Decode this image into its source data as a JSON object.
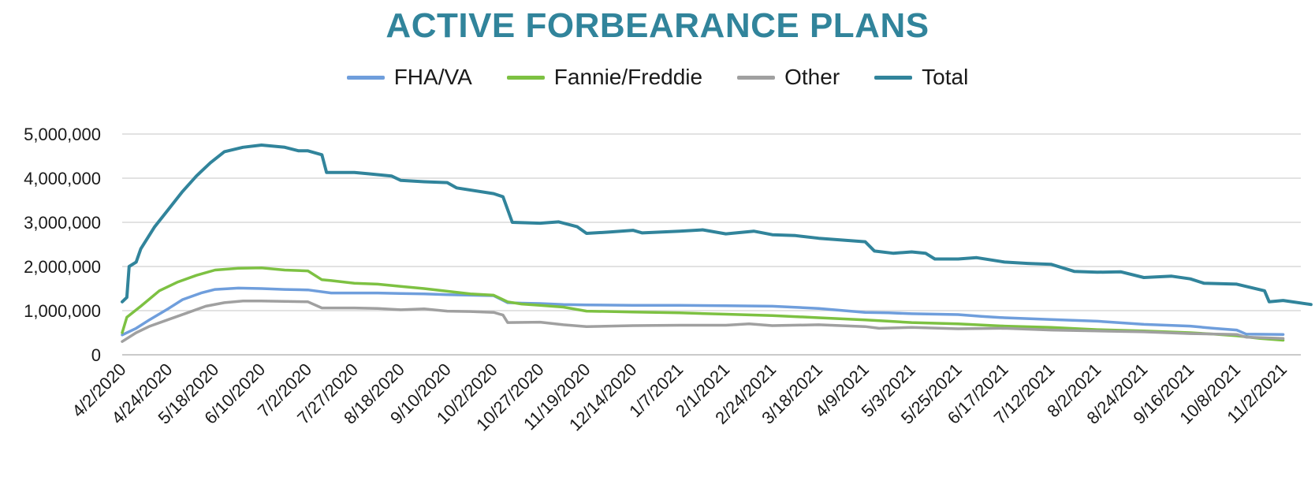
{
  "chart_data": {
    "type": "line",
    "title": "ACTIVE FORBEARANCE PLANS",
    "xlabel": "",
    "ylabel": "",
    "ylim": [
      0,
      5000000
    ],
    "yticks": [
      {
        "value": 0,
        "label": "0"
      },
      {
        "value": 1000000,
        "label": "1,000,000"
      },
      {
        "value": 2000000,
        "label": "2,000,000"
      },
      {
        "value": 3000000,
        "label": "3,000,000"
      },
      {
        "value": 4000000,
        "label": "4,000,000"
      },
      {
        "value": 5000000,
        "label": "5,000,000"
      }
    ],
    "xticks": [
      "4/2/2020",
      "4/24/2020",
      "5/18/2020",
      "6/10/2020",
      "7/2/2020",
      "7/27/2020",
      "8/18/2020",
      "9/10/2020",
      "10/2/2020",
      "10/27/2020",
      "11/19/2020",
      "12/14/2020",
      "1/7/2021",
      "2/1/2021",
      "2/24/2021",
      "3/18/2021",
      "4/9/2021",
      "5/3/2021",
      "5/25/2021",
      "6/17/2021",
      "7/12/2021",
      "8/2/2021",
      "8/24/2021",
      "9/16/2021",
      "10/8/2021",
      "11/2/2021"
    ],
    "grid": true,
    "legend_position": "top",
    "series": [
      {
        "name": "FHA/VA",
        "color": "#6f9edc",
        "points": [
          [
            0,
            450000
          ],
          [
            0.3,
            600000
          ],
          [
            0.6,
            800000
          ],
          [
            1,
            1050000
          ],
          [
            1.3,
            1250000
          ],
          [
            1.7,
            1400000
          ],
          [
            2,
            1480000
          ],
          [
            2.5,
            1510000
          ],
          [
            3,
            1500000
          ],
          [
            3.5,
            1480000
          ],
          [
            4,
            1470000
          ],
          [
            4.5,
            1400000
          ],
          [
            5,
            1400000
          ],
          [
            5.5,
            1400000
          ],
          [
            6,
            1390000
          ],
          [
            6.5,
            1380000
          ],
          [
            7,
            1360000
          ],
          [
            7.5,
            1350000
          ],
          [
            8,
            1340000
          ],
          [
            8.3,
            1180000
          ],
          [
            8.6,
            1170000
          ],
          [
            9,
            1160000
          ],
          [
            9.5,
            1140000
          ],
          [
            10,
            1130000
          ],
          [
            11,
            1120000
          ],
          [
            12,
            1120000
          ],
          [
            13,
            1110000
          ],
          [
            14,
            1100000
          ],
          [
            15,
            1050000
          ],
          [
            16,
            960000
          ],
          [
            16.5,
            950000
          ],
          [
            17,
            930000
          ],
          [
            18,
            910000
          ],
          [
            18.5,
            870000
          ],
          [
            19,
            840000
          ],
          [
            20,
            800000
          ],
          [
            21,
            760000
          ],
          [
            22,
            690000
          ],
          [
            23,
            650000
          ],
          [
            23.5,
            600000
          ],
          [
            24,
            560000
          ],
          [
            24.2,
            470000
          ],
          [
            25,
            460000
          ]
        ]
      },
      {
        "name": "Fannie/Freddie",
        "color": "#7dc142",
        "points": [
          [
            0,
            500000
          ],
          [
            0.1,
            850000
          ],
          [
            0.4,
            1100000
          ],
          [
            0.8,
            1450000
          ],
          [
            1.2,
            1650000
          ],
          [
            1.6,
            1800000
          ],
          [
            2,
            1920000
          ],
          [
            2.5,
            1960000
          ],
          [
            3,
            1970000
          ],
          [
            3.5,
            1920000
          ],
          [
            4,
            1900000
          ],
          [
            4.3,
            1700000
          ],
          [
            4.5,
            1680000
          ],
          [
            5,
            1620000
          ],
          [
            5.5,
            1600000
          ],
          [
            6,
            1550000
          ],
          [
            6.5,
            1500000
          ],
          [
            7,
            1440000
          ],
          [
            7.5,
            1380000
          ],
          [
            8,
            1350000
          ],
          [
            8.3,
            1200000
          ],
          [
            8.6,
            1150000
          ],
          [
            9,
            1120000
          ],
          [
            9.5,
            1080000
          ],
          [
            10,
            990000
          ],
          [
            11,
            970000
          ],
          [
            12,
            950000
          ],
          [
            13,
            920000
          ],
          [
            14,
            890000
          ],
          [
            15,
            840000
          ],
          [
            16,
            790000
          ],
          [
            16.5,
            760000
          ],
          [
            17,
            730000
          ],
          [
            18,
            700000
          ],
          [
            19,
            650000
          ],
          [
            20,
            620000
          ],
          [
            21,
            570000
          ],
          [
            22,
            540000
          ],
          [
            23,
            500000
          ],
          [
            23.5,
            470000
          ],
          [
            24,
            430000
          ],
          [
            24.5,
            370000
          ],
          [
            25,
            330000
          ]
        ]
      },
      {
        "name": "Other",
        "color": "#a0a0a0",
        "points": [
          [
            0,
            300000
          ],
          [
            0.3,
            500000
          ],
          [
            0.6,
            650000
          ],
          [
            1,
            800000
          ],
          [
            1.4,
            950000
          ],
          [
            1.8,
            1100000
          ],
          [
            2.2,
            1180000
          ],
          [
            2.6,
            1220000
          ],
          [
            3,
            1220000
          ],
          [
            3.5,
            1210000
          ],
          [
            4,
            1200000
          ],
          [
            4.3,
            1060000
          ],
          [
            5,
            1060000
          ],
          [
            5.5,
            1050000
          ],
          [
            6,
            1020000
          ],
          [
            6.5,
            1040000
          ],
          [
            7,
            990000
          ],
          [
            7.5,
            980000
          ],
          [
            8,
            960000
          ],
          [
            8.2,
            900000
          ],
          [
            8.3,
            730000
          ],
          [
            9,
            740000
          ],
          [
            9.5,
            680000
          ],
          [
            10,
            640000
          ],
          [
            11,
            660000
          ],
          [
            12,
            670000
          ],
          [
            13,
            670000
          ],
          [
            13.5,
            700000
          ],
          [
            14,
            660000
          ],
          [
            15,
            680000
          ],
          [
            16,
            640000
          ],
          [
            16.3,
            600000
          ],
          [
            17,
            620000
          ],
          [
            18,
            590000
          ],
          [
            19,
            600000
          ],
          [
            20,
            560000
          ],
          [
            21,
            540000
          ],
          [
            22,
            520000
          ],
          [
            23,
            480000
          ],
          [
            24,
            460000
          ],
          [
            24.2,
            400000
          ],
          [
            25,
            370000
          ]
        ]
      },
      {
        "name": "Total",
        "color": "#31849b",
        "points": [
          [
            0,
            1200000
          ],
          [
            0.1,
            1300000
          ],
          [
            0.15,
            2000000
          ],
          [
            0.3,
            2100000
          ],
          [
            0.4,
            2400000
          ],
          [
            0.7,
            2900000
          ],
          [
            1,
            3300000
          ],
          [
            1.3,
            3700000
          ],
          [
            1.6,
            4050000
          ],
          [
            1.9,
            4350000
          ],
          [
            2.2,
            4600000
          ],
          [
            2.6,
            4700000
          ],
          [
            3,
            4750000
          ],
          [
            3.5,
            4700000
          ],
          [
            3.8,
            4620000
          ],
          [
            4,
            4620000
          ],
          [
            4.3,
            4530000
          ],
          [
            4.4,
            4130000
          ],
          [
            5,
            4130000
          ],
          [
            5.3,
            4100000
          ],
          [
            5.8,
            4050000
          ],
          [
            6,
            3950000
          ],
          [
            6.5,
            3920000
          ],
          [
            7,
            3900000
          ],
          [
            7.2,
            3780000
          ],
          [
            8,
            3650000
          ],
          [
            8.2,
            3580000
          ],
          [
            8.4,
            3000000
          ],
          [
            9,
            2980000
          ],
          [
            9.4,
            3010000
          ],
          [
            9.8,
            2900000
          ],
          [
            10,
            2750000
          ],
          [
            10.5,
            2780000
          ],
          [
            11,
            2820000
          ],
          [
            11.2,
            2760000
          ],
          [
            12,
            2800000
          ],
          [
            12.5,
            2830000
          ],
          [
            13,
            2740000
          ],
          [
            13.6,
            2800000
          ],
          [
            14,
            2720000
          ],
          [
            14.5,
            2700000
          ],
          [
            15,
            2640000
          ],
          [
            16,
            2560000
          ],
          [
            16.2,
            2350000
          ],
          [
            16.6,
            2300000
          ],
          [
            17,
            2330000
          ],
          [
            17.3,
            2300000
          ],
          [
            17.5,
            2170000
          ],
          [
            18,
            2170000
          ],
          [
            18.4,
            2200000
          ],
          [
            19,
            2100000
          ],
          [
            19.5,
            2070000
          ],
          [
            20,
            2050000
          ],
          [
            20.5,
            1890000
          ],
          [
            21,
            1870000
          ],
          [
            21.5,
            1880000
          ],
          [
            22,
            1750000
          ],
          [
            22.6,
            1780000
          ],
          [
            23,
            1720000
          ],
          [
            23.3,
            1620000
          ],
          [
            24,
            1600000
          ],
          [
            24.6,
            1450000
          ],
          [
            24.7,
            1200000
          ],
          [
            25,
            1230000
          ],
          [
            25.6,
            1140000
          ]
        ]
      }
    ]
  }
}
